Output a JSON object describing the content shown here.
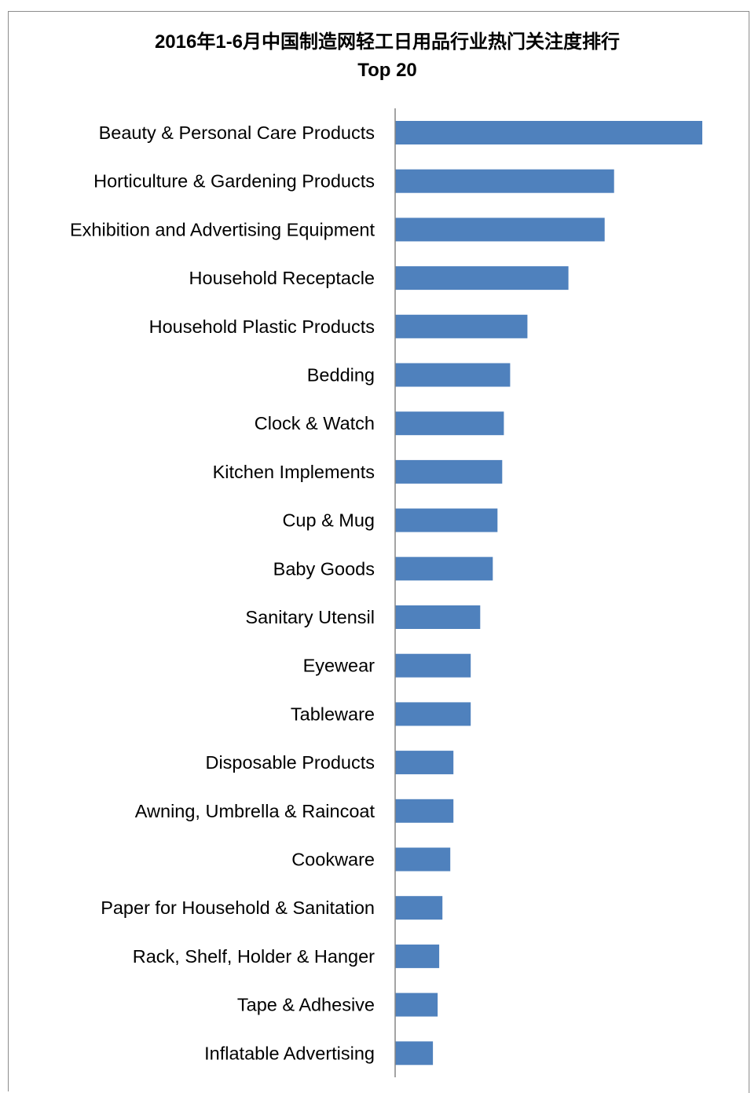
{
  "chart_data": {
    "type": "bar",
    "orientation": "horizontal",
    "title": "2016年1-6月中国制造网轻工日用品行业热门关注度排行",
    "subtitle": "Top 20",
    "xlabel": "",
    "ylabel": "",
    "grid": false,
    "legend": "none",
    "bar_color": "#4f81bd",
    "categories": [
      "Beauty & Personal Care Products",
      "Horticulture & Gardening Products",
      "Exhibition and Advertising Equipment",
      "Household Receptacle",
      "Household Plastic Products",
      "Bedding",
      "Clock & Watch",
      "Kitchen Implements",
      "Cup & Mug",
      "Baby Goods",
      "Sanitary Utensil",
      "Eyewear",
      "Tableware",
      "Disposable Products",
      "Awning, Umbrella & Raincoat",
      "Cookware",
      "Paper for Household & Sanitation",
      "Rack, Shelf, Holder & Hanger",
      "Tape & Adhesive",
      "Inflatable Advertising"
    ],
    "values": [
      390,
      278,
      266,
      220,
      168,
      146,
      138,
      136,
      130,
      124,
      108,
      96,
      96,
      74,
      74,
      70,
      60,
      56,
      54,
      48
    ],
    "xlim": [
      0,
      390
    ]
  }
}
